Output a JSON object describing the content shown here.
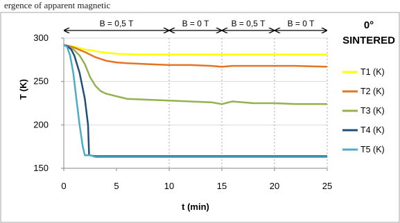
{
  "header_fragment": "ergence of apparent magnetic ",
  "chart_data": {
    "type": "line",
    "title": "0°",
    "subtitle": "SINTERED",
    "xlabel": "t (min)",
    "ylabel": "T (K)",
    "xlim": [
      0,
      25
    ],
    "ylim": [
      150,
      300
    ],
    "xticks": [
      0,
      5,
      10,
      15,
      20,
      25
    ],
    "yticks": [
      150,
      200,
      250,
      300
    ],
    "grid": "horizontal",
    "legend_position": "right",
    "field_segments": [
      {
        "start": 0,
        "end": 10,
        "label": "B = 0,5 T"
      },
      {
        "start": 10,
        "end": 15,
        "label": "B = 0 T"
      },
      {
        "start": 15,
        "end": 20,
        "label": "B = 0,5 T"
      },
      {
        "start": 20,
        "end": 25,
        "label": "B = 0 T"
      }
    ],
    "series": [
      {
        "name": "T1 (K)",
        "color": "#ffff00",
        "points": [
          [
            0,
            292
          ],
          [
            0.5,
            291
          ],
          [
            1,
            290
          ],
          [
            2,
            287
          ],
          [
            3,
            285
          ],
          [
            4,
            283
          ],
          [
            5,
            282
          ],
          [
            7,
            281
          ],
          [
            10,
            281
          ],
          [
            15,
            281
          ],
          [
            20,
            281
          ],
          [
            25,
            281
          ]
        ]
      },
      {
        "name": "T2 (K)",
        "color": "#e67321",
        "points": [
          [
            0,
            292
          ],
          [
            0.5,
            291
          ],
          [
            1,
            289
          ],
          [
            2,
            284
          ],
          [
            3,
            278
          ],
          [
            4,
            274
          ],
          [
            5,
            272
          ],
          [
            6,
            271
          ],
          [
            8,
            270
          ],
          [
            10,
            269
          ],
          [
            12,
            269
          ],
          [
            14,
            268
          ],
          [
            15,
            267
          ],
          [
            16,
            268
          ],
          [
            18,
            268
          ],
          [
            20,
            268
          ],
          [
            22,
            268
          ],
          [
            25,
            267
          ]
        ]
      },
      {
        "name": "T3 (K)",
        "color": "#92b14f",
        "points": [
          [
            0,
            292
          ],
          [
            0.5,
            290
          ],
          [
            1,
            286
          ],
          [
            1.5,
            280
          ],
          [
            2,
            270
          ],
          [
            2.5,
            255
          ],
          [
            3,
            245
          ],
          [
            3.5,
            239
          ],
          [
            4,
            236
          ],
          [
            5,
            233
          ],
          [
            6,
            230
          ],
          [
            8,
            229
          ],
          [
            10,
            228
          ],
          [
            12,
            227
          ],
          [
            14,
            226
          ],
          [
            15,
            224
          ],
          [
            16,
            227
          ],
          [
            18,
            225
          ],
          [
            20,
            225
          ],
          [
            22,
            224
          ],
          [
            25,
            224
          ]
        ]
      },
      {
        "name": "T4 (K)",
        "color": "#1f4e79",
        "points": [
          [
            0,
            292
          ],
          [
            0.3,
            291
          ],
          [
            0.7,
            287
          ],
          [
            1,
            280
          ],
          [
            1.5,
            260
          ],
          [
            2,
            230
          ],
          [
            2.3,
            200
          ],
          [
            2.4,
            165
          ],
          [
            3,
            164
          ],
          [
            5,
            164
          ],
          [
            10,
            164
          ],
          [
            15,
            164
          ],
          [
            20,
            164
          ],
          [
            25,
            164
          ]
        ]
      },
      {
        "name": "T5 (K)",
        "color": "#4bacc6",
        "points": [
          [
            0,
            292
          ],
          [
            0.3,
            290
          ],
          [
            0.6,
            280
          ],
          [
            0.9,
            260
          ],
          [
            1.2,
            230
          ],
          [
            1.5,
            200
          ],
          [
            1.8,
            175
          ],
          [
            2,
            165
          ],
          [
            2.5,
            165
          ],
          [
            3,
            163
          ],
          [
            5,
            163
          ],
          [
            10,
            163
          ],
          [
            15,
            163
          ],
          [
            20,
            163
          ],
          [
            25,
            163
          ]
        ]
      }
    ]
  }
}
